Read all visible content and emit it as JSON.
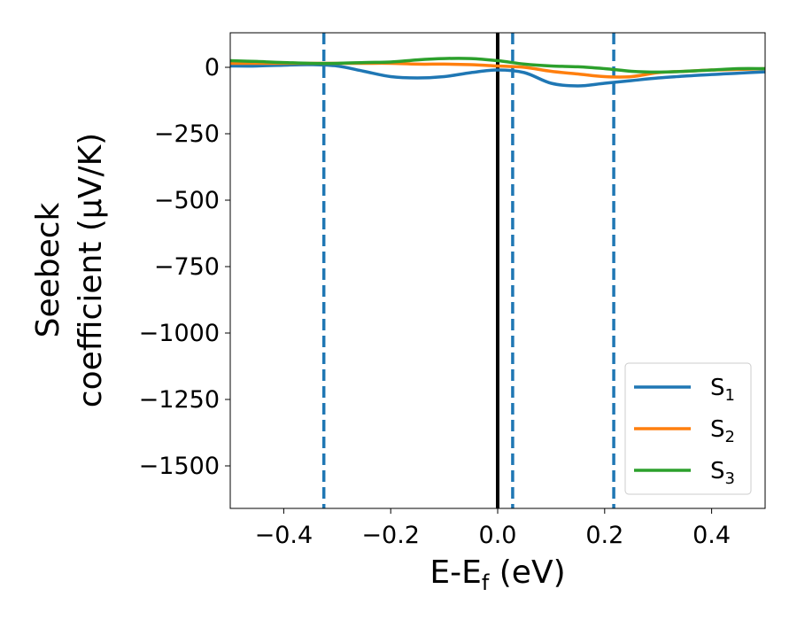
{
  "chart_data": {
    "type": "line",
    "xlabel": "E-E",
    "xlabel_sub": "f",
    "xlabel_unit": " (eV)",
    "ylabel_line1": "Seebeck",
    "ylabel_line2": "coefficient  (μV/K)",
    "xlim": [
      -0.5,
      0.5
    ],
    "ylim": [
      -1660,
      130
    ],
    "xticks": [
      -0.4,
      -0.2,
      0.0,
      0.2,
      0.4
    ],
    "xtick_labels": [
      "−0.4",
      "−0.2",
      "0.0",
      "0.2",
      "0.4"
    ],
    "yticks": [
      0,
      -250,
      -500,
      -750,
      -1000,
      -1250,
      -1500
    ],
    "ytick_labels": [
      "0",
      "−250",
      "−500",
      "−750",
      "−1000",
      "−1250",
      "−1500"
    ],
    "grid": false,
    "legend_position": "lower-right",
    "vlines": [
      {
        "x": -0.325,
        "style": "dashed",
        "color": "#1f77b4"
      },
      {
        "x": 0.0,
        "style": "solid",
        "color": "#000000"
      },
      {
        "x": 0.028,
        "style": "dashed",
        "color": "#1f77b4"
      },
      {
        "x": 0.217,
        "style": "dashed",
        "color": "#1f77b4"
      }
    ],
    "series": [
      {
        "name": "S",
        "name_sub": "1",
        "color": "#1f77b4",
        "x": [
          -0.5,
          -0.45,
          -0.4,
          -0.35,
          -0.3,
          -0.25,
          -0.2,
          -0.15,
          -0.1,
          -0.05,
          0.0,
          0.05,
          0.1,
          0.15,
          0.2,
          0.25,
          0.3,
          0.35,
          0.4,
          0.45,
          0.5
        ],
        "y": [
          5,
          5,
          8,
          10,
          5,
          -15,
          -35,
          -40,
          -35,
          -20,
          -10,
          -20,
          -60,
          -70,
          -60,
          -50,
          -40,
          -33,
          -27,
          -22,
          -17
        ]
      },
      {
        "name": "S",
        "name_sub": "2",
        "color": "#ff7f0e",
        "x": [
          -0.5,
          -0.45,
          -0.4,
          -0.35,
          -0.3,
          -0.25,
          -0.2,
          -0.15,
          -0.1,
          -0.05,
          0.0,
          0.05,
          0.1,
          0.15,
          0.2,
          0.25,
          0.3,
          0.35,
          0.4,
          0.45,
          0.5
        ],
        "y": [
          15,
          15,
          15,
          15,
          15,
          15,
          15,
          12,
          12,
          10,
          5,
          0,
          -15,
          -25,
          -35,
          -35,
          -20,
          -15,
          -10,
          -8,
          -5
        ]
      },
      {
        "name": "S",
        "name_sub": "3",
        "color": "#2ca02c",
        "x": [
          -0.5,
          -0.45,
          -0.4,
          -0.35,
          -0.3,
          -0.25,
          -0.2,
          -0.15,
          -0.1,
          -0.05,
          0.0,
          0.05,
          0.1,
          0.15,
          0.2,
          0.25,
          0.3,
          0.35,
          0.4,
          0.45,
          0.5
        ],
        "y": [
          25,
          22,
          18,
          15,
          15,
          18,
          20,
          28,
          33,
          33,
          25,
          12,
          5,
          2,
          -5,
          -15,
          -18,
          -15,
          -10,
          -5,
          -5
        ]
      }
    ]
  }
}
